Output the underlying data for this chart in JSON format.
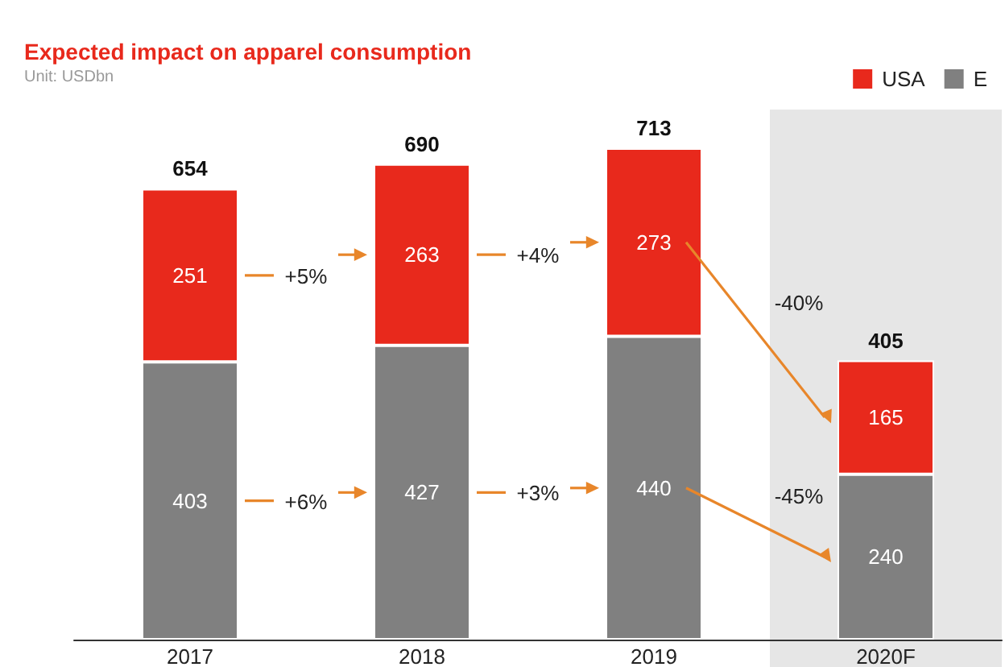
{
  "chart_data": {
    "type": "bar",
    "title": "Expected impact on apparel consumption",
    "subtitle": "Unit: USDbn",
    "categories": [
      "2017",
      "2018",
      "2019",
      "2020F"
    ],
    "series": [
      {
        "name": "E",
        "color": "#808080",
        "values": [
          403,
          427,
          440,
          240
        ]
      },
      {
        "name": "USA",
        "color": "#e8291c",
        "values": [
          251,
          263,
          273,
          165
        ]
      }
    ],
    "stacked": true,
    "data_labels": true,
    "totals": [
      "654",
      "690",
      "713",
      "405"
    ],
    "bands": [
      {
        "axis": "x",
        "from": "2020F",
        "to": "2020F",
        "color": "#e6e6e6"
      }
    ],
    "annotations": [
      "+5%",
      "+6%",
      "+4%",
      "+3%",
      "-40%",
      "-45%"
    ],
    "legend": "top right"
  }
}
